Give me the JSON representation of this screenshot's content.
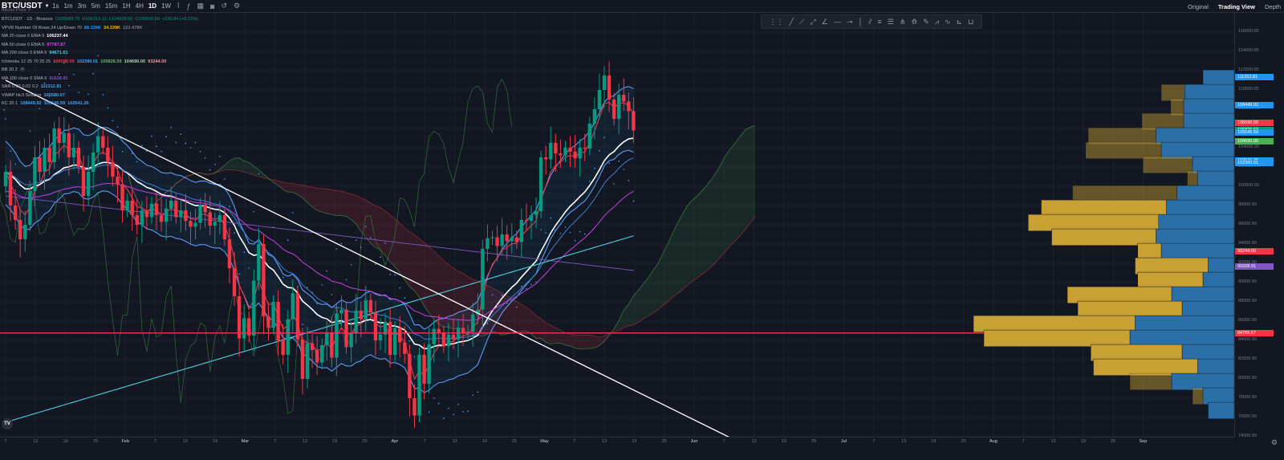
{
  "header": {
    "symbol": "BTC/USDT",
    "timeframes": [
      "1s",
      "1m",
      "3m",
      "5m",
      "15m",
      "1H",
      "4H",
      "1D",
      "1W"
    ],
    "active_timeframe": "1D",
    "view_modes": [
      "Original",
      "Trading View",
      "Depth"
    ],
    "active_view": "Trading View",
    "subtitle": "Bitcoin Price ↗"
  },
  "legend": {
    "title": "BTCUSDT · 1D · Binance",
    "ohlc": {
      "o": "O105589.75",
      "h": "H106313.12",
      "l": "L104600.50",
      "c": "C105826.59",
      "chg": "+236.84 (+0.22%)"
    },
    "rows": [
      {
        "name": "VPVR Number Of Rows 24 Up/Down 70",
        "values": [
          {
            "v": "88.139K",
            "color": "#2196f3"
          },
          {
            "v": "34.339K",
            "color": "#f0b90b"
          },
          {
            "v": "122.478K",
            "color": "#787b86"
          }
        ]
      },
      {
        "name": "MA 20 close 0 EMA 9",
        "values": [
          {
            "v": "106237.44",
            "color": "#ffffff"
          }
        ]
      },
      {
        "name": "MA 50 close 0 EMA 9",
        "values": [
          {
            "v": "97787.87",
            "color": "#e040fb"
          }
        ]
      },
      {
        "name": "MA 200 close 0 EMA 9",
        "values": [
          {
            "v": "94671.61",
            "color": "#4dd0e1"
          }
        ]
      },
      {
        "name": "Ichimoku 12 25 70 25 25",
        "values": [
          {
            "v": "106590.00",
            "color": "#f23645"
          },
          {
            "v": "102390.01",
            "color": "#42a5f5"
          },
          {
            "v": "105826.59",
            "color": "#66bb6a"
          },
          {
            "v": "104690.00",
            "color": "#a5d6a7"
          },
          {
            "v": "93244.00",
            "color": "#ef9a9a"
          }
        ]
      },
      {
        "name": "BB 20 2",
        "values": []
      },
      {
        "name": "MA 100 close 0 SMA 9",
        "values": [
          {
            "v": "91628.91",
            "color": "#7e57c2"
          }
        ]
      },
      {
        "name": "SAR 0.02 0.02 0.2",
        "values": [
          {
            "v": "111312.81",
            "color": "#42a5f5"
          }
        ]
      },
      {
        "name": "VWAP hlc3 Session",
        "values": [
          {
            "v": "105580.07",
            "color": "#42a5f5"
          }
        ]
      },
      {
        "name": "KC 20 1",
        "values": [
          {
            "v": "108449.92",
            "color": "#42a5f5"
          },
          {
            "v": "105545.59",
            "color": "#42a5f5"
          },
          {
            "v": "102641.26",
            "color": "#42a5f5"
          }
        ]
      }
    ]
  },
  "price_axis": {
    "ticks": [
      "116000.00",
      "114000.00",
      "112000.00",
      "110000.00",
      "108000.00",
      "106000.00",
      "104000.00",
      "102000.00",
      "100000.00",
      "98000.00",
      "96000.00",
      "94000.00",
      "92000.00",
      "90000.00",
      "88000.00",
      "86000.00",
      "84000.00",
      "82000.00",
      "80000.00",
      "78000.00",
      "76000.00",
      "74000.00"
    ],
    "labels": [
      {
        "text": "111312.81",
        "color": "#2196f3"
      },
      {
        "text": "108449.92",
        "color": "#2196f3"
      },
      {
        "text": "106590.00",
        "color": "#f23645"
      },
      {
        "text": "105826.59",
        "color": "#089981"
      },
      {
        "text": "105580.07",
        "color": "#2196f3"
      },
      {
        "text": "105545.59",
        "color": "#2196f3"
      },
      {
        "text": "104690.00",
        "color": "#4caf50"
      },
      {
        "text": "102641.26",
        "color": "#2196f3"
      },
      {
        "text": "102390.01",
        "color": "#2196f3"
      },
      {
        "text": "93244.00",
        "color": "#f23645"
      },
      {
        "text": "91628.91",
        "color": "#7e57c2"
      },
      {
        "text": "84765.67",
        "color": "#f23645"
      }
    ]
  },
  "time_axis": {
    "ticks": [
      {
        "t": "7",
        "m": false
      },
      {
        "t": "13",
        "m": false
      },
      {
        "t": "19",
        "m": false
      },
      {
        "t": "25",
        "m": false
      },
      {
        "t": "Feb",
        "m": true
      },
      {
        "t": "7",
        "m": false
      },
      {
        "t": "13",
        "m": false
      },
      {
        "t": "19",
        "m": false
      },
      {
        "t": "Mar",
        "m": true
      },
      {
        "t": "7",
        "m": false
      },
      {
        "t": "13",
        "m": false
      },
      {
        "t": "19",
        "m": false
      },
      {
        "t": "25",
        "m": false
      },
      {
        "t": "Apr",
        "m": true
      },
      {
        "t": "7",
        "m": false
      },
      {
        "t": "13",
        "m": false
      },
      {
        "t": "19",
        "m": false
      },
      {
        "t": "25",
        "m": false
      },
      {
        "t": "May",
        "m": true
      },
      {
        "t": "7",
        "m": false
      },
      {
        "t": "13",
        "m": false
      },
      {
        "t": "19",
        "m": false
      },
      {
        "t": "25",
        "m": false
      },
      {
        "t": "Jun",
        "m": true
      },
      {
        "t": "7",
        "m": false
      },
      {
        "t": "13",
        "m": false
      },
      {
        "t": "19",
        "m": false
      },
      {
        "t": "25",
        "m": false
      },
      {
        "t": "Jul",
        "m": true
      },
      {
        "t": "7",
        "m": false
      },
      {
        "t": "13",
        "m": false
      },
      {
        "t": "19",
        "m": false
      },
      {
        "t": "25",
        "m": false
      },
      {
        "t": "Aug",
        "m": true
      },
      {
        "t": "7",
        "m": false
      },
      {
        "t": "13",
        "m": false
      },
      {
        "t": "19",
        "m": false
      },
      {
        "t": "25",
        "m": false
      },
      {
        "t": "Sep",
        "m": true
      }
    ]
  },
  "colors": {
    "up": "#089981",
    "down": "#f23645",
    "bg": "#131722",
    "grid": "#1e222d",
    "vp_up": "#2a6fa8",
    "vp_down": "#c8a033"
  },
  "chart_data": {
    "type": "candlestick",
    "symbol": "BTCUSDT",
    "interval": "1D",
    "ylim": [
      74000,
      117000
    ],
    "current_price": 105826.59,
    "horizontal_line": 84765.67,
    "closes": [
      101500,
      98000,
      96500,
      94500,
      96000,
      99500,
      103000,
      101500,
      104000,
      102500,
      106000,
      104500,
      105500,
      103000,
      104000,
      102000,
      99000,
      101500,
      103500,
      105200,
      104000,
      102500,
      101000,
      100200,
      97500,
      98500,
      97000,
      96000,
      97500,
      96800,
      98200,
      97000,
      96300,
      97700,
      98500,
      96800,
      97500,
      96400,
      95800,
      96200,
      98100,
      97300,
      95900,
      96300,
      97000,
      94500,
      91500,
      88600,
      84200,
      86300,
      84500,
      90200,
      94000,
      86500,
      85300,
      88000,
      84000,
      82500,
      86200,
      88900,
      84100,
      80000,
      83700,
      83000,
      81700,
      83500,
      84800,
      82200,
      86800,
      87200,
      83300,
      84700,
      87100,
      86200,
      88200,
      86900,
      84000,
      84600,
      85900,
      82500,
      85300,
      83800,
      82600,
      78000,
      76200,
      82500,
      79500,
      83600,
      85200,
      84800,
      83400,
      84600,
      84100,
      85300,
      84700,
      84900,
      86700,
      87200,
      93500,
      94600,
      94700,
      93800,
      95000,
      94300,
      94700,
      94200,
      96500,
      96400,
      97000,
      97400,
      103000,
      102800,
      104500,
      103400,
      103200,
      104000,
      103600,
      102900,
      104000,
      103900,
      106500,
      108000,
      110000,
      111500,
      109000,
      107000,
      109500,
      108800,
      107800,
      105800
    ]
  }
}
